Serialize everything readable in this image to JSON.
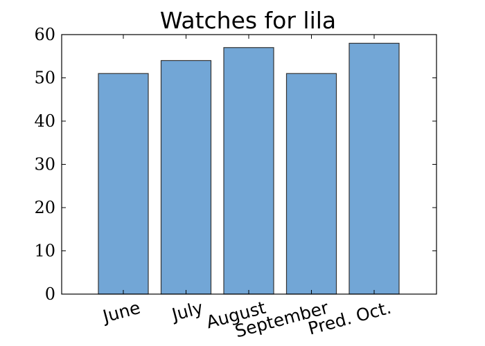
{
  "chart_data": {
    "type": "bar",
    "title": "Watches for lila",
    "xlabel": "",
    "ylabel": "",
    "categories": [
      "June",
      "July",
      "August",
      "September",
      "Pred. Oct."
    ],
    "values": [
      51,
      54,
      57,
      51,
      58
    ],
    "ylim": [
      0,
      60
    ],
    "yticks": [
      0,
      10,
      20,
      30,
      40,
      50,
      60
    ],
    "bar_color": "#72a6d6",
    "bar_edge_color": "#333333",
    "grid": false,
    "legend": "none"
  }
}
